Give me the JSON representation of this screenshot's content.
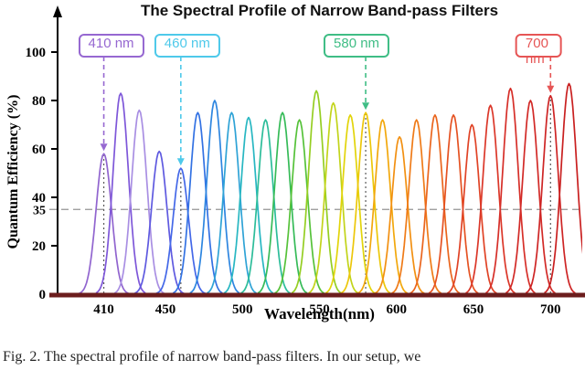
{
  "chart_data": {
    "type": "line",
    "title": "The Spectral Profile of Narrow Band-pass Filters",
    "xlabel": "Wavelength(nm)",
    "ylabel": "Quantum Efficiency (%)",
    "xlim": [
      380,
      720
    ],
    "ylim": [
      0,
      100
    ],
    "x_ticks": [
      410,
      450,
      500,
      550,
      600,
      650,
      700
    ],
    "y_ticks": [
      0,
      20,
      40,
      60,
      80,
      100
    ],
    "threshold": {
      "value": 35,
      "label": "35"
    },
    "grid": false,
    "legend": "none",
    "axis_color": "#6b1d1d",
    "filters": [
      {
        "center_nm": 410,
        "peak_qe": 58,
        "color": "#9165cf"
      },
      {
        "center_nm": 421,
        "peak_qe": 83,
        "color": "#7e57d9"
      },
      {
        "center_nm": 433,
        "peak_qe": 76,
        "color": "#a98fe3"
      },
      {
        "center_nm": 446,
        "peak_qe": 59,
        "color": "#5f5ae0"
      },
      {
        "center_nm": 460,
        "peak_qe": 52,
        "color": "#4468e8"
      },
      {
        "center_nm": 471,
        "peak_qe": 75,
        "color": "#3372e3"
      },
      {
        "center_nm": 482,
        "peak_qe": 80,
        "color": "#2e86e0"
      },
      {
        "center_nm": 493,
        "peak_qe": 75,
        "color": "#2fa3d6"
      },
      {
        "center_nm": 504,
        "peak_qe": 73,
        "color": "#28b7c2"
      },
      {
        "center_nm": 515,
        "peak_qe": 72,
        "color": "#2dbd9a"
      },
      {
        "center_nm": 526,
        "peak_qe": 75,
        "color": "#36bb58"
      },
      {
        "center_nm": 537,
        "peak_qe": 72,
        "color": "#56c23a"
      },
      {
        "center_nm": 548,
        "peak_qe": 84,
        "color": "#95ce22"
      },
      {
        "center_nm": 559,
        "peak_qe": 79,
        "color": "#c2d41a"
      },
      {
        "center_nm": 570,
        "peak_qe": 74,
        "color": "#e2d40a"
      },
      {
        "center_nm": 580,
        "peak_qe": 75,
        "color": "#ecc70a"
      },
      {
        "center_nm": 591,
        "peak_qe": 72,
        "color": "#f2a80d"
      },
      {
        "center_nm": 602,
        "peak_qe": 65,
        "color": "#f29012"
      },
      {
        "center_nm": 613,
        "peak_qe": 72,
        "color": "#ef7b18"
      },
      {
        "center_nm": 625,
        "peak_qe": 74,
        "color": "#ea651d"
      },
      {
        "center_nm": 637,
        "peak_qe": 74,
        "color": "#e55222"
      },
      {
        "center_nm": 649,
        "peak_qe": 70,
        "color": "#e04326"
      },
      {
        "center_nm": 661,
        "peak_qe": 78,
        "color": "#db3729"
      },
      {
        "center_nm": 674,
        "peak_qe": 85,
        "color": "#d62f29"
      },
      {
        "center_nm": 687,
        "peak_qe": 80,
        "color": "#d22a27"
      },
      {
        "center_nm": 700,
        "peak_qe": 82,
        "color": "#ce2525"
      },
      {
        "center_nm": 712,
        "peak_qe": 87,
        "color": "#c92020"
      }
    ],
    "annotations": [
      {
        "label": "410 nm",
        "wavelength": 410,
        "color": "#9668d1",
        "box_dx": 8
      },
      {
        "label": "460 nm",
        "wavelength": 460,
        "color": "#4ec9ea",
        "box_dx": 7
      },
      {
        "label": "580 nm",
        "wavelength": 580,
        "color": "#3fbd85",
        "box_dx": -10
      },
      {
        "label": "700 nm",
        "wavelength": 700,
        "color": "#e65555",
        "box_dx": -13
      }
    ]
  },
  "caption": "Fig. 2.  The spectral profile of narrow band-pass filters. In our setup, we"
}
